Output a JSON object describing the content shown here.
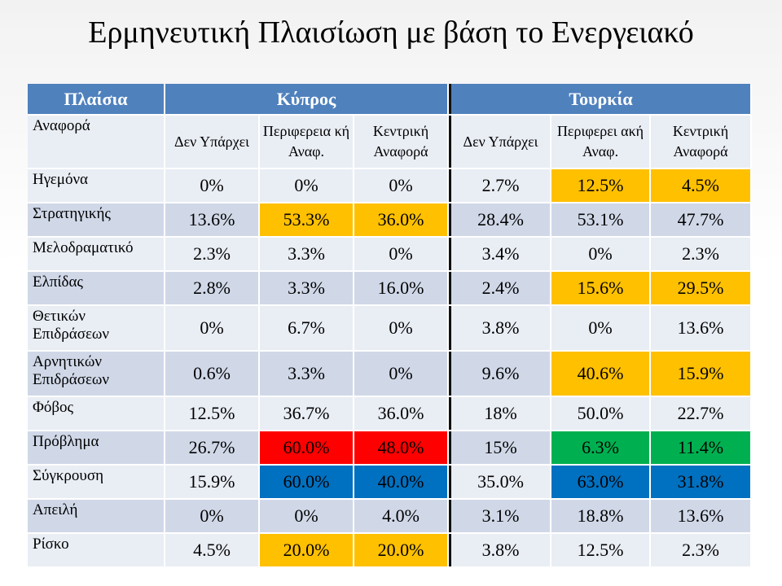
{
  "title": "Ερμηνευτική Πλαισίωση με βάση το Ενεργειακό",
  "colors": {
    "header_blue": "#4f81bd",
    "row_light": "#e9edf4",
    "row_dark": "#d0d8e8",
    "orange": "#ffc000",
    "red": "#ff0000",
    "green": "#00b050",
    "blue": "#0070c0"
  },
  "table": {
    "header": {
      "frames": "Πλαίσια",
      "cyprus": "Κύπρος",
      "turkey": "Τουρκία"
    },
    "subheader": {
      "label": "Αναφορά",
      "cyprus": [
        "Δεν Υπάρχει",
        "Περιφερεια κή Αναφ.",
        "Κεντρική Αναφορά"
      ],
      "turkey": [
        "Δεν Υπάρχει",
        "Περιφερει ακή Αναφ.",
        "Κεντρική Αναφορά"
      ]
    },
    "rows": [
      {
        "label": "Ηγεμόνα",
        "cyprus": [
          "0%",
          "0%",
          "0%"
        ],
        "turkey": [
          "2.7%",
          "12.5%",
          "4.5%"
        ],
        "cyprus_hl": [
          "",
          "",
          ""
        ],
        "turkey_hl": [
          "",
          "orange",
          "orange"
        ]
      },
      {
        "label": "Στρατηγικής",
        "cyprus": [
          "13.6%",
          "53.3%",
          "36.0%"
        ],
        "turkey": [
          "28.4%",
          "53.1%",
          "47.7%"
        ],
        "cyprus_hl": [
          "",
          "orange",
          "orange"
        ],
        "turkey_hl": [
          "",
          "",
          ""
        ]
      },
      {
        "label": "Μελοδραματικό",
        "cyprus": [
          "2.3%",
          "3.3%",
          "0%"
        ],
        "turkey": [
          "3.4%",
          "0%",
          "2.3%"
        ],
        "cyprus_hl": [
          "",
          "",
          ""
        ],
        "turkey_hl": [
          "",
          "",
          ""
        ]
      },
      {
        "label": "Ελπίδας",
        "cyprus": [
          "2.8%",
          "3.3%",
          "16.0%"
        ],
        "turkey": [
          "2.4%",
          "15.6%",
          "29.5%"
        ],
        "cyprus_hl": [
          "",
          "",
          ""
        ],
        "turkey_hl": [
          "",
          "orange",
          "orange"
        ]
      },
      {
        "label": "Θετικών Επιδράσεων",
        "cyprus": [
          "0%",
          "6.7%",
          "0%"
        ],
        "turkey": [
          "3.8%",
          "0%",
          "13.6%"
        ],
        "cyprus_hl": [
          "",
          "",
          ""
        ],
        "turkey_hl": [
          "",
          "",
          ""
        ]
      },
      {
        "label": "Αρνητικών Επιδράσεων",
        "cyprus": [
          "0.6%",
          "3.3%",
          "0%"
        ],
        "turkey": [
          "9.6%",
          "40.6%",
          "15.9%"
        ],
        "cyprus_hl": [
          "",
          "",
          ""
        ],
        "turkey_hl": [
          "",
          "orange",
          "orange"
        ]
      },
      {
        "label": "Φόβος",
        "cyprus": [
          "12.5%",
          "36.7%",
          "36.0%"
        ],
        "turkey": [
          "18%",
          "50.0%",
          "22.7%"
        ],
        "cyprus_hl": [
          "",
          "",
          ""
        ],
        "turkey_hl": [
          "",
          "",
          ""
        ]
      },
      {
        "label": "Πρόβλημα",
        "cyprus": [
          "26.7%",
          "60.0%",
          "48.0%"
        ],
        "turkey": [
          "15%",
          "6.3%",
          "11.4%"
        ],
        "cyprus_hl": [
          "",
          "red",
          "red"
        ],
        "turkey_hl": [
          "",
          "green",
          "green"
        ]
      },
      {
        "label": "Σύγκρουση",
        "cyprus": [
          "15.9%",
          "60.0%",
          "40.0%"
        ],
        "turkey": [
          "35.0%",
          "63.0%",
          "31.8%"
        ],
        "cyprus_hl": [
          "",
          "blue",
          "blue"
        ],
        "turkey_hl": [
          "",
          "blue",
          "blue"
        ]
      },
      {
        "label": "Απειλή",
        "cyprus": [
          "0%",
          "0%",
          "4.0%"
        ],
        "turkey": [
          "3.1%",
          "18.8%",
          "13.6%"
        ],
        "cyprus_hl": [
          "",
          "",
          ""
        ],
        "turkey_hl": [
          "",
          "",
          ""
        ]
      },
      {
        "label": "Ρίσκο",
        "cyprus": [
          "4.5%",
          "20.0%",
          "20.0%"
        ],
        "turkey": [
          "3.8%",
          "12.5%",
          "2.3%"
        ],
        "cyprus_hl": [
          "",
          "orange",
          "orange"
        ],
        "turkey_hl": [
          "",
          "",
          ""
        ]
      }
    ]
  }
}
